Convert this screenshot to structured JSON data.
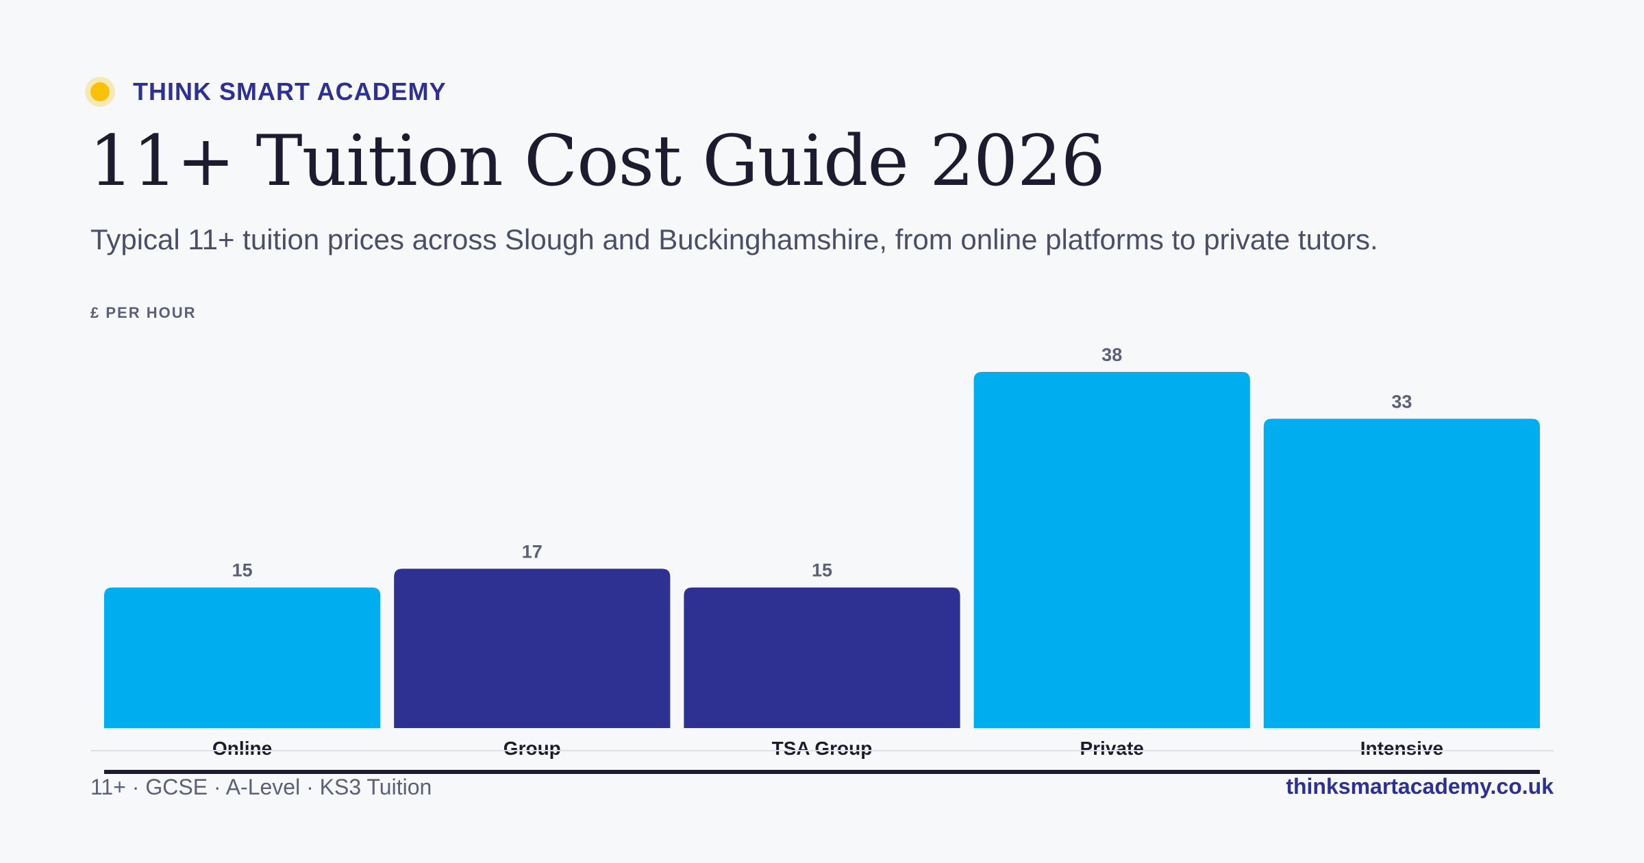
{
  "brand": {
    "name": "THINK SMART ACADEMY",
    "icon": "sun-dot-icon",
    "icon_color": "#f9c10a"
  },
  "header": {
    "title": "11+ Tuition Cost Guide 2026",
    "subtitle": "Typical 11+ tuition prices across Slough and Buckinghamshire, from online platforms to private tutors."
  },
  "footer": {
    "left": "11+ · GCSE · A-Level · KS3 Tuition",
    "right": "thinksmartacademy.co.uk"
  },
  "chart_data": {
    "type": "bar",
    "title": "",
    "xlabel": "",
    "ylabel": "£ PER HOUR",
    "categories": [
      "Online",
      "Group",
      "TSA Group",
      "Private",
      "Intensive"
    ],
    "values": [
      15,
      17,
      15,
      38,
      33
    ],
    "bar_colors": [
      "#00aeef",
      "#2e3192",
      "#2e3192",
      "#00aeef",
      "#00aeef"
    ],
    "ylim": [
      0,
      38
    ],
    "grid": false,
    "legend": "none"
  }
}
